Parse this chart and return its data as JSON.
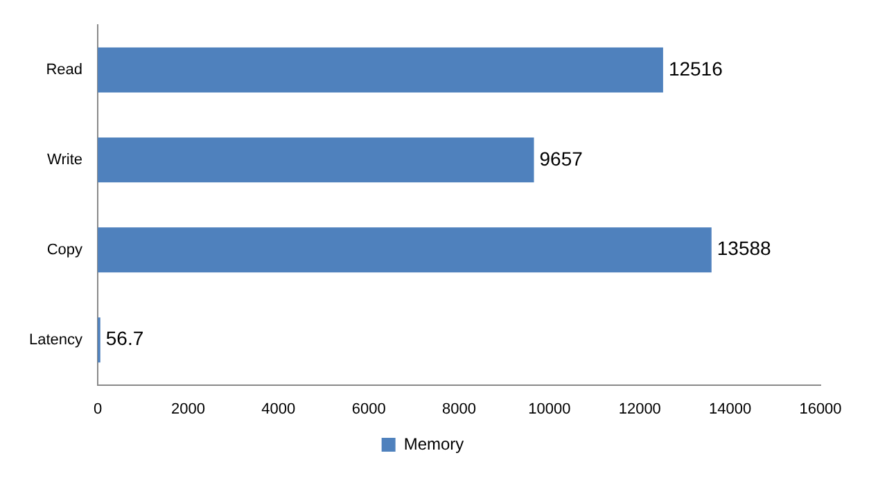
{
  "chart_data": {
    "type": "bar",
    "orientation": "horizontal",
    "categories": [
      "Read",
      "Write",
      "Copy",
      "Latency"
    ],
    "series": [
      {
        "name": "Memory",
        "color": "#4f81bd",
        "values": [
          12516,
          9657,
          13588,
          56.7
        ]
      }
    ],
    "xlim": [
      0,
      16000
    ],
    "xticks": [
      0,
      2000,
      4000,
      6000,
      8000,
      10000,
      12000,
      14000,
      16000
    ],
    "data_labels": true,
    "grid": false,
    "legend": "bottom"
  }
}
